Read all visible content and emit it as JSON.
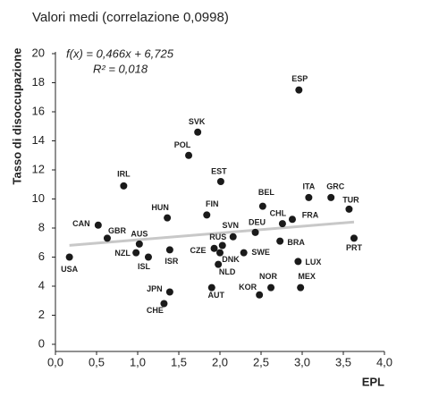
{
  "chart_data": {
    "type": "scatter",
    "title": "Valori medi (correlazione 0,0998)",
    "xlabel": "EPL",
    "ylabel": "Tasso di disoccupazione",
    "trend": {
      "slope": 0.466,
      "intercept": 6.725,
      "equation": "f(x) = 0,466x + 6,725",
      "r2_label": "R² = 0,018",
      "r2": 0.018,
      "color": "#c8c8c8"
    },
    "color": "#1a1a1a",
    "xlim": [
      0,
      4
    ],
    "ylim": [
      0,
      20
    ],
    "xticks": [
      {
        "value": 0,
        "label": "0,0"
      },
      {
        "value": 0.5,
        "label": "0,5"
      },
      {
        "value": 1,
        "label": "1,0"
      },
      {
        "value": 1.5,
        "label": "1,5"
      },
      {
        "value": 2,
        "label": "2,0"
      },
      {
        "value": 2.5,
        "label": "2,5"
      },
      {
        "value": 3,
        "label": "3,0"
      },
      {
        "value": 3.5,
        "label": "3,5"
      },
      {
        "value": 4,
        "label": "4,0"
      }
    ],
    "yticks": [
      0,
      2,
      4,
      6,
      8,
      10,
      12,
      14,
      16,
      18,
      20
    ],
    "points": [
      {
        "label": "USA",
        "x": 0.17,
        "y": 6.0
      },
      {
        "label": "CAN",
        "x": 0.52,
        "y": 8.2
      },
      {
        "label": "GBR",
        "x": 0.63,
        "y": 7.3
      },
      {
        "label": "AUS",
        "x": 1.02,
        "y": 6.9
      },
      {
        "label": "NZL",
        "x": 0.98,
        "y": 6.3
      },
      {
        "label": "ISL",
        "x": 1.13,
        "y": 6.0
      },
      {
        "label": "IRL",
        "x": 0.83,
        "y": 10.9
      },
      {
        "label": "ISR",
        "x": 1.39,
        "y": 6.5
      },
      {
        "label": "HUN",
        "x": 1.36,
        "y": 8.7
      },
      {
        "label": "JPN",
        "x": 1.39,
        "y": 3.6
      },
      {
        "label": "CHE",
        "x": 1.32,
        "y": 2.8
      },
      {
        "label": "POL",
        "x": 1.62,
        "y": 13.0
      },
      {
        "label": "SVK",
        "x": 1.73,
        "y": 14.6
      },
      {
        "label": "FIN",
        "x": 1.84,
        "y": 8.9
      },
      {
        "label": "EST",
        "x": 2.01,
        "y": 11.2
      },
      {
        "label": "CZE",
        "x": 1.93,
        "y": 6.6
      },
      {
        "label": "RUS",
        "x": 2.03,
        "y": 6.8
      },
      {
        "label": "DNK",
        "x": 2.0,
        "y": 6.3
      },
      {
        "label": "NLD",
        "x": 1.98,
        "y": 5.5
      },
      {
        "label": "AUT",
        "x": 1.9,
        "y": 3.9
      },
      {
        "label": "SVN",
        "x": 2.16,
        "y": 7.4
      },
      {
        "label": "DEU",
        "x": 2.43,
        "y": 7.7
      },
      {
        "label": "SWE",
        "x": 2.29,
        "y": 6.3
      },
      {
        "label": "BEL",
        "x": 2.52,
        "y": 9.5
      },
      {
        "label": "KOR",
        "x": 2.48,
        "y": 3.4
      },
      {
        "label": "NOR",
        "x": 2.62,
        "y": 3.9
      },
      {
        "label": "CHL",
        "x": 2.76,
        "y": 8.3
      },
      {
        "label": "BRA",
        "x": 2.73,
        "y": 7.1
      },
      {
        "label": "FRA",
        "x": 2.88,
        "y": 8.6
      },
      {
        "label": "ESP",
        "x": 2.96,
        "y": 17.5
      },
      {
        "label": "ITA",
        "x": 3.08,
        "y": 10.1
      },
      {
        "label": "GRC",
        "x": 3.35,
        "y": 10.1
      },
      {
        "label": "TUR",
        "x": 3.57,
        "y": 9.3
      },
      {
        "label": "PRT",
        "x": 3.63,
        "y": 7.3
      },
      {
        "label": "LUX",
        "x": 2.95,
        "y": 5.7
      },
      {
        "label": "MEX",
        "x": 2.98,
        "y": 3.9
      }
    ]
  }
}
